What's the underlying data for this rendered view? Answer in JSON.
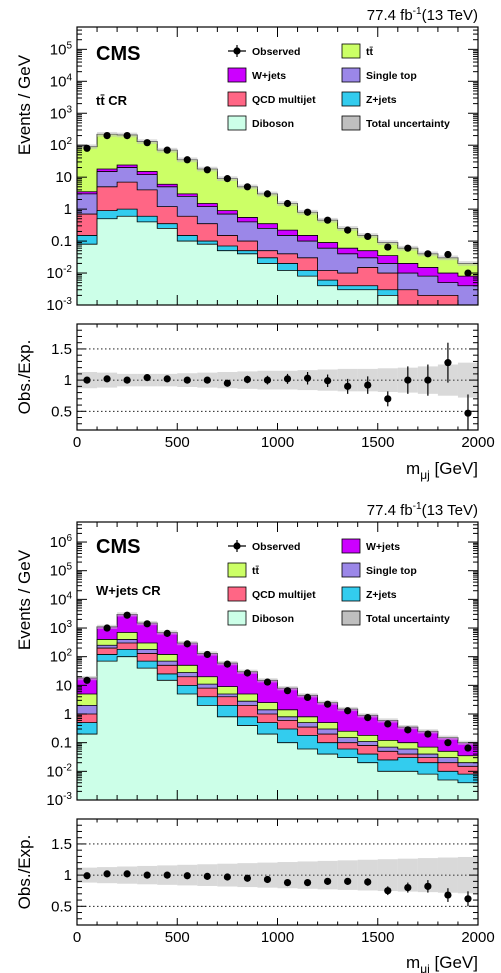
{
  "lumi_text": "77.4 fb",
  "lumi_sup": "-1",
  "lumi_energy": "(13 TeV)",
  "experiment": "CMS",
  "colors": {
    "ttbar": "#ccff66",
    "wjets": "#cc00ff",
    "qcd": "#ff6685",
    "singletop": "#9b87e8",
    "zjets": "#33ccee",
    "diboson": "#ccffe8",
    "uncertainty": "#bfbfbf"
  },
  "chart_data": [
    {
      "type": "bar",
      "stacked": true,
      "region_label": "tt̄ CR",
      "xlabel": "m",
      "xlabel_sub": "μj",
      "xlabel_unit": " [GeV]",
      "ylabel": "Events / GeV",
      "ratio_ylabel": "Obs./Exp.",
      "xlim": [
        0,
        2000
      ],
      "ylim": [
        0.001,
        500000
      ],
      "yscale": "log",
      "ratio_ylim": [
        0.2,
        1.9
      ],
      "x_ticks": [
        "0",
        "500",
        "1000",
        "1500",
        "2000"
      ],
      "y_tick_labels": [
        "10-3",
        "10-2",
        "0.1",
        "1",
        "10",
        "102",
        "103",
        "104",
        "105"
      ],
      "ratio_ticks": [
        "0.5",
        "1",
        "1.5"
      ],
      "bin_edges": [
        0,
        100,
        200,
        300,
        400,
        500,
        600,
        700,
        800,
        900,
        1000,
        1100,
        1200,
        1300,
        1400,
        1500,
        1600,
        1700,
        1800,
        1900,
        2000
      ],
      "legend": [
        {
          "name": "Observed",
          "style": "marker"
        },
        {
          "name": "tt̄",
          "key": "ttbar"
        },
        {
          "name": "W+jets",
          "key": "wjets"
        },
        {
          "name": "Single top",
          "key": "singletop"
        },
        {
          "name": "QCD multijet",
          "key": "qcd"
        },
        {
          "name": "Z+jets",
          "key": "zjets"
        },
        {
          "name": "Diboson",
          "key": "diboson"
        },
        {
          "name": "Total uncertainty",
          "key": "uncertainty"
        }
      ],
      "stack_order": [
        "diboson",
        "zjets",
        "qcd",
        "singletop",
        "wjets",
        "ttbar"
      ],
      "cumulative_tops": {
        "diboson": [
          0.08,
          0.5,
          0.6,
          0.4,
          0.25,
          0.1,
          0.08,
          0.05,
          0.04,
          0.02,
          0.012,
          0.008,
          0.004,
          0.003,
          0.003,
          0.002,
          0.001,
          0.001,
          0.001,
          0.001
        ],
        "zjets": [
          0.15,
          0.9,
          1.0,
          0.6,
          0.35,
          0.15,
          0.1,
          0.07,
          0.05,
          0.03,
          0.02,
          0.012,
          0.006,
          0.004,
          0.004,
          0.003,
          0.001,
          0.001,
          0.001,
          0.001
        ],
        "qcd": [
          0.7,
          5,
          7,
          4,
          1.2,
          0.6,
          0.35,
          0.15,
          0.1,
          0.05,
          0.04,
          0.03,
          0.012,
          0.01,
          0.015,
          0.01,
          0.003,
          0.002,
          0.002,
          0.001
        ],
        "singletop": [
          3,
          15,
          20,
          12,
          5,
          2.5,
          1.2,
          0.7,
          0.4,
          0.25,
          0.15,
          0.1,
          0.06,
          0.04,
          0.03,
          0.02,
          0.01,
          0.008,
          0.005,
          0.004
        ],
        "wjets": [
          3.5,
          18,
          24,
          15,
          6,
          3,
          1.5,
          0.9,
          0.55,
          0.35,
          0.22,
          0.15,
          0.09,
          0.06,
          0.05,
          0.035,
          0.02,
          0.015,
          0.01,
          0.008
        ],
        "ttbar": [
          90,
          220,
          210,
          130,
          70,
          35,
          18,
          9,
          5,
          3,
          1.5,
          0.8,
          0.45,
          0.25,
          0.15,
          0.09,
          0.06,
          0.04,
          0.03,
          0.02
        ]
      },
      "observed": [
        80,
        200,
        200,
        120,
        70,
        35,
        17,
        9,
        5,
        3,
        1.5,
        0.8,
        0.45,
        0.22,
        0.14,
        0.065,
        0.06,
        0.04,
        0.038,
        0.01
      ],
      "observed_ratio": [
        1.0,
        1.02,
        1.0,
        1.04,
        1.02,
        1.0,
        1.0,
        0.95,
        1.01,
        1.0,
        1.02,
        1.03,
        0.99,
        0.9,
        0.92,
        0.7,
        1.0,
        1.0,
        1.28,
        0.47
      ],
      "observed_ratio_err": [
        0.02,
        0.02,
        0.02,
        0.03,
        0.03,
        0.03,
        0.04,
        0.05,
        0.06,
        0.07,
        0.08,
        0.1,
        0.1,
        0.12,
        0.14,
        0.12,
        0.22,
        0.25,
        0.32,
        0.3
      ],
      "uncertainty_ratio": [
        0.13,
        0.12,
        0.1,
        0.1,
        0.1,
        0.11,
        0.12,
        0.13,
        0.14,
        0.15,
        0.15,
        0.16,
        0.17,
        0.18,
        0.18,
        0.19,
        0.2,
        0.22,
        0.25,
        0.28
      ]
    },
    {
      "type": "bar",
      "stacked": true,
      "region_label": "W+jets CR",
      "xlabel": "m",
      "xlabel_sub": "μj",
      "xlabel_unit": " [GeV]",
      "ylabel": "Events / GeV",
      "ratio_ylabel": "Obs./Exp.",
      "xlim": [
        0,
        2000
      ],
      "ylim": [
        0.001,
        5000000
      ],
      "yscale": "log",
      "ratio_ylim": [
        0.2,
        1.9
      ],
      "x_ticks": [
        "0",
        "500",
        "1000",
        "1500",
        "2000"
      ],
      "y_tick_labels": [
        "10-3",
        "10-2",
        "0.1",
        "1",
        "10",
        "102",
        "103",
        "104",
        "105",
        "106"
      ],
      "ratio_ticks": [
        "0.5",
        "1",
        "1.5"
      ],
      "bin_edges": [
        0,
        100,
        200,
        300,
        400,
        500,
        600,
        700,
        800,
        900,
        1000,
        1100,
        1200,
        1300,
        1400,
        1500,
        1600,
        1700,
        1800,
        1900,
        2000
      ],
      "legend": [
        {
          "name": "Observed",
          "style": "marker"
        },
        {
          "name": "W+jets",
          "key": "wjets"
        },
        {
          "name": "tt̄",
          "key": "ttbar"
        },
        {
          "name": "Single top",
          "key": "singletop"
        },
        {
          "name": "QCD multijet",
          "key": "qcd"
        },
        {
          "name": "Z+jets",
          "key": "zjets"
        },
        {
          "name": "Diboson",
          "key": "diboson"
        },
        {
          "name": "Total uncertainty",
          "key": "uncertainty"
        }
      ],
      "stack_order": [
        "diboson",
        "zjets",
        "qcd",
        "singletop",
        "ttbar",
        "wjets"
      ],
      "cumulative_tops": {
        "diboson": [
          0.2,
          70,
          100,
          40,
          15,
          5,
          2,
          0.8,
          0.4,
          0.2,
          0.1,
          0.06,
          0.04,
          0.03,
          0.02,
          0.01,
          0.01,
          0.008,
          0.005,
          0.004
        ],
        "zjets": [
          0.5,
          120,
          180,
          70,
          25,
          10,
          4,
          2,
          0.8,
          0.5,
          0.3,
          0.18,
          0.1,
          0.06,
          0.04,
          0.025,
          0.03,
          0.02,
          0.01,
          0.008
        ],
        "qcd": [
          1,
          200,
          300,
          130,
          50,
          20,
          8,
          4,
          2,
          1,
          0.6,
          0.35,
          0.2,
          0.1,
          0.08,
          0.05,
          0.04,
          0.03,
          0.02,
          0.015
        ],
        "singletop": [
          2,
          250,
          400,
          180,
          70,
          28,
          11,
          5,
          2.8,
          1.4,
          0.8,
          0.5,
          0.3,
          0.15,
          0.11,
          0.07,
          0.06,
          0.04,
          0.03,
          0.02
        ],
        "ttbar": [
          5,
          400,
          700,
          300,
          120,
          50,
          20,
          9,
          5,
          2.5,
          1.4,
          0.8,
          0.5,
          0.25,
          0.18,
          0.12,
          0.1,
          0.07,
          0.05,
          0.035
        ],
        "wjets": [
          18,
          1100,
          3000,
          1500,
          700,
          300,
          130,
          60,
          30,
          15,
          8,
          4.5,
          2.5,
          1.5,
          0.9,
          0.6,
          0.35,
          0.25,
          0.15,
          0.1
        ]
      },
      "observed": [
        15,
        1000,
        2800,
        1400,
        650,
        280,
        120,
        55,
        27,
        13,
        6.5,
        3.8,
        2.2,
        1.3,
        0.75,
        0.45,
        0.28,
        0.2,
        0.1,
        0.065
      ],
      "observed_ratio": [
        0.99,
        1.02,
        1.02,
        1.0,
        1.0,
        0.99,
        0.98,
        0.97,
        0.95,
        0.93,
        0.88,
        0.88,
        0.9,
        0.9,
        0.89,
        0.75,
        0.8,
        0.82,
        0.68,
        0.62
      ],
      "observed_ratio_err": [
        0.02,
        0.01,
        0.01,
        0.01,
        0.01,
        0.01,
        0.01,
        0.01,
        0.02,
        0.02,
        0.03,
        0.03,
        0.04,
        0.05,
        0.06,
        0.07,
        0.08,
        0.1,
        0.11,
        0.12
      ]
    }
  ]
}
